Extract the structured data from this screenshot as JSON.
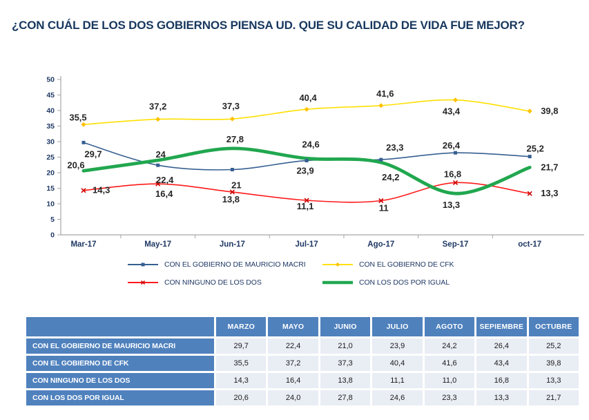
{
  "title": "¿CON CUÁL DE LOS DOS GOBIERNOS PIENSA UD. QUE SU CALIDAD DE VIDA FUE MEJOR?",
  "colors": {
    "title_navy": "#17375E",
    "axis_text_navy": "#1F3864",
    "axis_line_gray": "#A6A6A6",
    "table_header_blue": "#4F81BD",
    "table_cell_bg": "#E9EDF4"
  },
  "chart_data": {
    "type": "line",
    "x": [
      "Mar-17",
      "May-17",
      "Jun-17",
      "Jul-17",
      "Ago-17",
      "Sep-17",
      "oct-17"
    ],
    "ylim": [
      0,
      50
    ],
    "ytick_step": 5,
    "grid": false,
    "legend_position": "bottom",
    "series": [
      {
        "name": "CON EL GOBIERNO DE MAURICIO MACRI",
        "color": "#365F91",
        "marker": "square",
        "thick": false,
        "values": [
          29.7,
          22.4,
          21.0,
          23.9,
          24.2,
          26.4,
          25.2
        ]
      },
      {
        "name": "CON EL GOBIERNO DE CFK",
        "color": "#FFE000",
        "marker": "diamond",
        "marker_color": "#FFC000",
        "thick": false,
        "values": [
          35.5,
          37.2,
          37.3,
          40.4,
          41.6,
          43.4,
          39.8
        ]
      },
      {
        "name": "CON NINGUNO DE LOS DOS",
        "color": "#FF1A1A",
        "marker": "x",
        "marker_color": "#CC0000",
        "thick": false,
        "values": [
          14.3,
          16.4,
          13.8,
          11.1,
          11.0,
          16.8,
          13.3
        ]
      },
      {
        "name": "CON LOS DOS POR IGUAL",
        "color": "#21A74F",
        "marker": "none",
        "thick": true,
        "values": [
          20.6,
          24.0,
          27.8,
          24.6,
          23.3,
          13.3,
          21.7
        ]
      }
    ]
  },
  "table": {
    "headers": [
      "",
      "MARZO",
      "MAYO",
      "JUNIO",
      "JULIO",
      "AGOTO",
      "SEPIEMBRE",
      "OCTUBRE"
    ],
    "rows": [
      {
        "label": "CON EL GOBIERNO DE MAURICIO MACRI",
        "values": [
          "29,7",
          "22,4",
          "21,0",
          "23,9",
          "24,2",
          "26,4",
          "25,2"
        ]
      },
      {
        "label": "CON EL GOBIERNO DE CFK",
        "values": [
          "35,5",
          "37,2",
          "37,3",
          "40,4",
          "41,6",
          "43,4",
          "39,8"
        ]
      },
      {
        "label": "CON NINGUNO DE LOS DOS",
        "values": [
          "14,3",
          "16,4",
          "13,8",
          "11,1",
          "11,0",
          "16,8",
          "13,3"
        ]
      },
      {
        "label": "CON LOS DOS POR IGUAL",
        "values": [
          "20,6",
          "24,0",
          "27,8",
          "24,6",
          "23,3",
          "13,3",
          "21,7"
        ]
      }
    ]
  }
}
